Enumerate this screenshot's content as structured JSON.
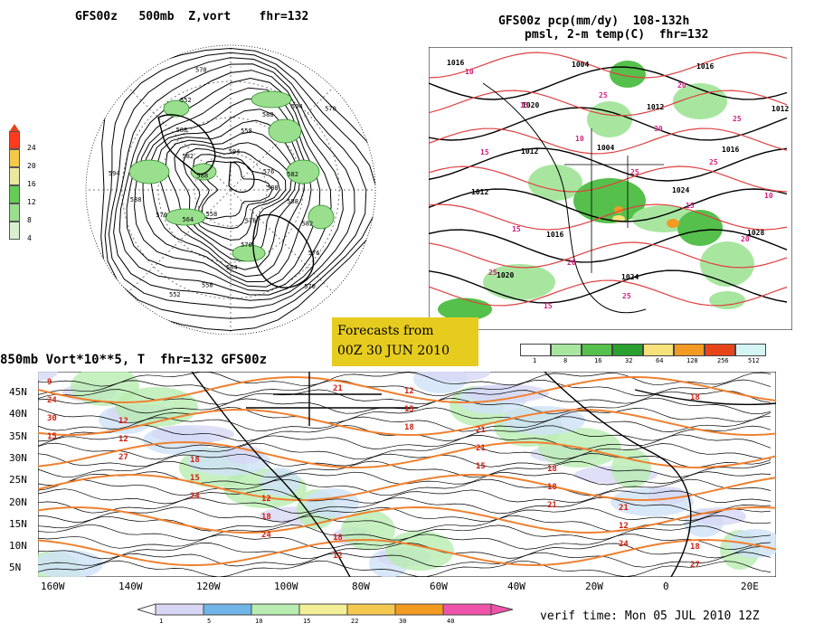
{
  "panels": {
    "z500": {
      "title": "GFS00z   500mb  Z,vort    fhr=132",
      "legend": [
        "24",
        "20",
        "16",
        "12",
        "8",
        "4"
      ],
      "legend_colors": [
        "#ff3b1f",
        "#f5c84a",
        "#e9e9a0",
        "#66cc55",
        "#9adf8e",
        "#d8f0cf"
      ],
      "contour_labels": [
        "588",
        "588",
        "582",
        "576",
        "570",
        "576",
        "570",
        "564",
        "558",
        "552",
        "558",
        "564",
        "576",
        "588",
        "594",
        "588",
        "582",
        "588",
        "552",
        "570",
        "594",
        "558",
        "588",
        "594",
        "570",
        "576",
        "582"
      ]
    },
    "precip": {
      "title_line1": "GFS00z pcp(mm/dy)  108-132h",
      "title_line2": "pmsl, 2-m temp(C)  fhr=132",
      "legend": [
        "1",
        "8",
        "16",
        "32",
        "64",
        "128",
        "256",
        "512"
      ],
      "legend_colors": [
        "#ffffff",
        "#a8e6a0",
        "#55c04b",
        "#29a030",
        "#f6e17a",
        "#f39a22",
        "#e8441a",
        "#d5f5f5"
      ],
      "pressure_labels": [
        "1016",
        "1020",
        "1004",
        "1024",
        "1028",
        "1020",
        "1004",
        "1012",
        "1016",
        "1012",
        "1016",
        "1024",
        "1016",
        "1012",
        "1012"
      ],
      "temp_labels": [
        "10",
        "15",
        "10",
        "25",
        "15",
        "20",
        "25",
        "15",
        "25",
        "30",
        "25",
        "10",
        "15",
        "20",
        "25",
        "20",
        "25",
        "15"
      ]
    },
    "v850": {
      "title": "850mb Vort*10**5, T  fhr=132 GFS00z",
      "lat_labels": [
        "45N",
        "40N",
        "35N",
        "30N",
        "25N",
        "20N",
        "15N",
        "10N",
        "5N"
      ],
      "lon_labels": [
        "160W",
        "140W",
        "120W",
        "100W",
        "80W",
        "60W",
        "40W",
        "20W",
        "0",
        "20E"
      ],
      "legend": [
        "1",
        "5",
        "10",
        "15",
        "22",
        "30",
        "40"
      ],
      "legend_colors": [
        "#d7d7f5",
        "#6fb5e8",
        "#b8ecb0",
        "#f3ef96",
        "#f6c84f",
        "#f29a20",
        "#ef53a9"
      ],
      "temp_labels": [
        "9",
        "12",
        "18",
        "12",
        "18",
        "12",
        "21",
        "18",
        "21",
        "18",
        "24",
        "12",
        "15",
        "18",
        "12",
        "15",
        "21",
        "18",
        "12",
        "27",
        "30",
        "27",
        "24",
        "24",
        "21",
        "18",
        "15",
        "21",
        "24",
        "18",
        "15"
      ]
    }
  },
  "forecast_box": {
    "line1": "Forecasts from",
    "line2": "00Z 30 JUN 2010"
  },
  "verif_time": "verif time: Mon 05 JUL 2010 12Z"
}
